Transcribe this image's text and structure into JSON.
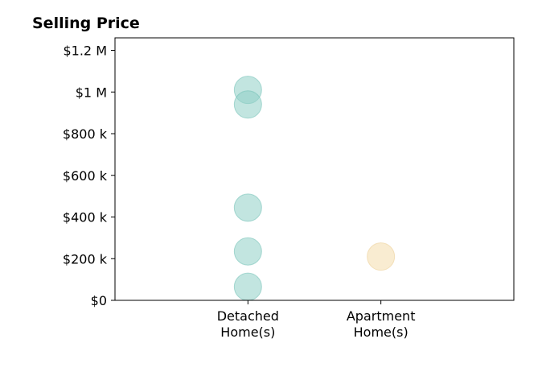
{
  "chart_data": {
    "type": "scatter",
    "title": "Selling Price",
    "xlabel": "",
    "ylabel": "",
    "categories": [
      "Detached\nHome(s)",
      "Apartment\nHome(s)"
    ],
    "xlim": [
      -1,
      2
    ],
    "ylim": [
      0,
      1260000
    ],
    "yticks": [
      0,
      200000,
      400000,
      600000,
      800000,
      1000000,
      1200000
    ],
    "ytick_labels": [
      "$0",
      "$200 k",
      "$400 k",
      "$600 k",
      "$800 k",
      "$1 M",
      "$1.2 M"
    ],
    "grid": false,
    "series": [
      {
        "category_index": 0,
        "color": "#8fcfc7",
        "stroke": "#6fbfb5",
        "opacity": 0.55,
        "values": [
          1010000,
          940000,
          445000,
          235000,
          65000
        ]
      },
      {
        "category_index": 1,
        "color": "#f5dfb2",
        "stroke": "#ecd19a",
        "opacity": 0.6,
        "values": [
          210000
        ]
      }
    ]
  }
}
